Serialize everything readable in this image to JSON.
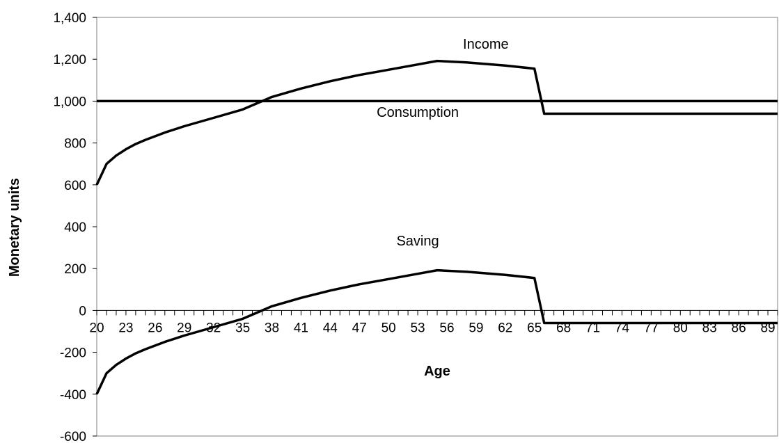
{
  "chart_data": {
    "type": "line",
    "title": "",
    "xlabel": "Age",
    "ylabel": "Monetary units",
    "ylim": [
      -600,
      1400
    ],
    "xlim": [
      20,
      90
    ],
    "yticks": [
      -600,
      -400,
      -200,
      0,
      200,
      400,
      600,
      800,
      1000,
      1200,
      1400
    ],
    "ytick_labels": [
      "-600",
      "-400",
      "-200",
      "0",
      "200",
      "400",
      "600",
      "800",
      "1,000",
      "1,200",
      "1,400"
    ],
    "xtick_labels": [
      "20",
      "23",
      "26",
      "29",
      "32",
      "35",
      "38",
      "41",
      "44",
      "47",
      "50",
      "53",
      "56",
      "59",
      "62",
      "65",
      "68",
      "71",
      "74",
      "77",
      "80",
      "83",
      "86",
      "89"
    ],
    "xtick_values": [
      20,
      23,
      26,
      29,
      32,
      35,
      38,
      41,
      44,
      47,
      50,
      53,
      56,
      59,
      62,
      65,
      68,
      71,
      74,
      77,
      80,
      83,
      86,
      89
    ],
    "grid": false,
    "series": [
      {
        "name": "Income",
        "x": [
          20,
          21,
          22,
          23,
          24,
          25,
          27,
          29,
          32,
          35,
          38,
          41,
          44,
          47,
          50,
          53,
          55,
          58,
          62,
          65,
          66,
          90
        ],
        "y": [
          600,
          700,
          740,
          770,
          795,
          815,
          850,
          880,
          920,
          960,
          1020,
          1060,
          1095,
          1125,
          1150,
          1175,
          1192,
          1185,
          1170,
          1155,
          940,
          940
        ]
      },
      {
        "name": "Consumption",
        "x": [
          20,
          90
        ],
        "y": [
          1000,
          1000
        ]
      },
      {
        "name": "Saving",
        "x": [
          20,
          21,
          22,
          23,
          24,
          25,
          27,
          29,
          32,
          35,
          38,
          41,
          44,
          47,
          50,
          53,
          55,
          58,
          62,
          65,
          66,
          90
        ],
        "y": [
          -400,
          -300,
          -260,
          -230,
          -205,
          -185,
          -150,
          -120,
          -80,
          -40,
          20,
          60,
          95,
          125,
          150,
          175,
          192,
          185,
          170,
          155,
          -60,
          -60
        ]
      }
    ],
    "annotations": [
      {
        "text": "Income",
        "x": 60,
        "y": 1250
      },
      {
        "text": "Consumption",
        "x": 53,
        "y": 925
      },
      {
        "text": "Saving",
        "x": 53,
        "y": 310
      }
    ]
  }
}
